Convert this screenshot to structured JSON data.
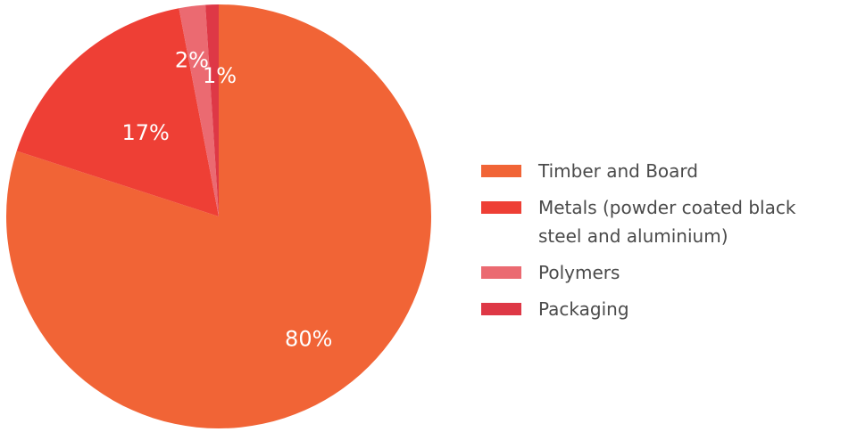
{
  "chart_data": {
    "type": "pie",
    "title": "",
    "slices": [
      {
        "label": "Timber and Board",
        "value": 80,
        "value_label": "80%",
        "color": "#f16436"
      },
      {
        "label": "Metals (powder coated black steel and aluminium)",
        "value": 17,
        "value_label": "17%",
        "color": "#ee3f35"
      },
      {
        "label": "Polymers",
        "value": 2,
        "value_label": "2%",
        "color": "#eb6a71"
      },
      {
        "label": "Packaging",
        "value": 1,
        "value_label": "1%",
        "color": "#de3846"
      }
    ],
    "legend_position": "right"
  }
}
